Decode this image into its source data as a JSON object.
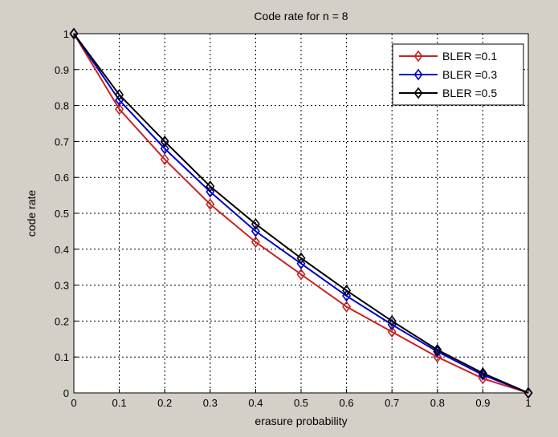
{
  "chart_data": {
    "type": "line",
    "title": "Code rate for n = 8",
    "xlabel": "erasure probability",
    "ylabel": "code rate",
    "xlim": [
      0,
      1
    ],
    "ylim": [
      0,
      1
    ],
    "grid": true,
    "legend_position": "top-right",
    "x_ticks": [
      "0",
      "0.1",
      "0.2",
      "0.3",
      "0.4",
      "0.5",
      "0.6",
      "0.7",
      "0.8",
      "0.9",
      "1"
    ],
    "y_ticks": [
      "0",
      "0.1",
      "0.2",
      "0.3",
      "0.4",
      "0.5",
      "0.6",
      "0.7",
      "0.8",
      "0.9",
      "1"
    ],
    "x": [
      0,
      0.1,
      0.2,
      0.3,
      0.4,
      0.5,
      0.6,
      0.7,
      0.8,
      0.9,
      1
    ],
    "series": [
      {
        "name": "BLER =0.1",
        "color": "#cc2222",
        "marker": "diamond",
        "values": [
          1.0,
          0.79,
          0.65,
          0.525,
          0.42,
          0.33,
          0.24,
          0.17,
          0.1,
          0.04,
          0.0
        ]
      },
      {
        "name": "BLER =0.3",
        "color": "#0000cc",
        "marker": "diamond",
        "values": [
          1.0,
          0.815,
          0.68,
          0.56,
          0.45,
          0.36,
          0.27,
          0.19,
          0.115,
          0.05,
          0.0
        ]
      },
      {
        "name": "BLER =0.5",
        "color": "#000000",
        "marker": "diamond",
        "values": [
          1.0,
          0.83,
          0.7,
          0.575,
          0.47,
          0.375,
          0.285,
          0.2,
          0.12,
          0.055,
          0.0
        ]
      }
    ]
  }
}
